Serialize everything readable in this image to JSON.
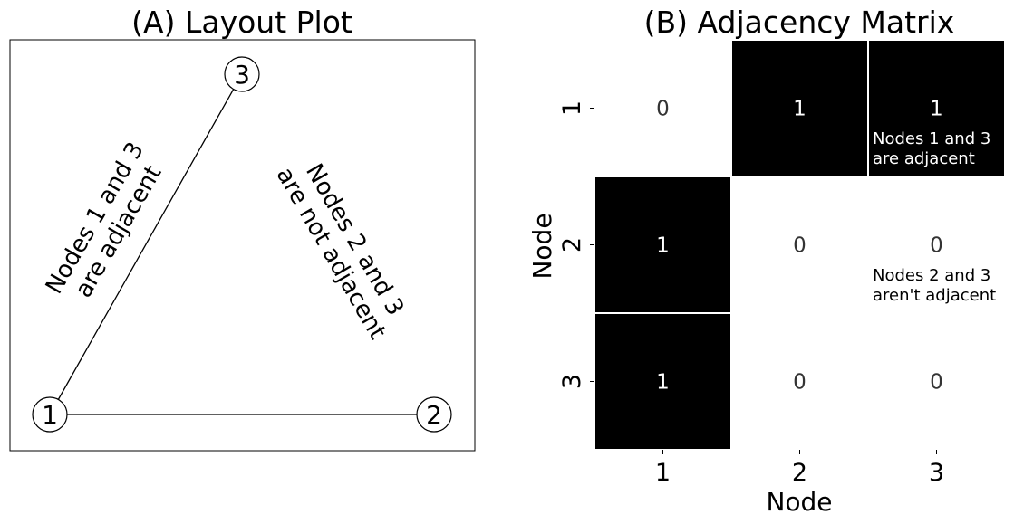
{
  "layout_plot": {
    "title": "(A) Layout Plot",
    "nodes": [
      {
        "id": "1",
        "label": "1"
      },
      {
        "id": "2",
        "label": "2"
      },
      {
        "id": "3",
        "label": "3"
      }
    ],
    "edges": [
      {
        "source": "1",
        "target": "3"
      },
      {
        "source": "1",
        "target": "2"
      }
    ],
    "annotation_adjacent": [
      "Nodes 1 and 3",
      "are adjacent"
    ],
    "annotation_not_adjacent": [
      "Nodes 2 and 3",
      "are not adjacent"
    ]
  },
  "adjacency_matrix": {
    "title": "(B) Adjacency Matrix",
    "xlabel": "Node",
    "ylabel": "Node",
    "row_labels": [
      "1",
      "2",
      "3"
    ],
    "col_labels": [
      "1",
      "2",
      "3"
    ],
    "values": [
      [
        0,
        1,
        1
      ],
      [
        1,
        0,
        0
      ],
      [
        1,
        0,
        0
      ]
    ],
    "colors": {
      "one": "#000000",
      "zero": "#ffffff",
      "text_on_one": "#ffffff",
      "text_on_zero": "#333333"
    },
    "note_adjacent": [
      "Nodes 1 and 3",
      "are adjacent"
    ],
    "note_not_adjacent": [
      "Nodes 2 and 3",
      "aren't adjacent"
    ]
  }
}
